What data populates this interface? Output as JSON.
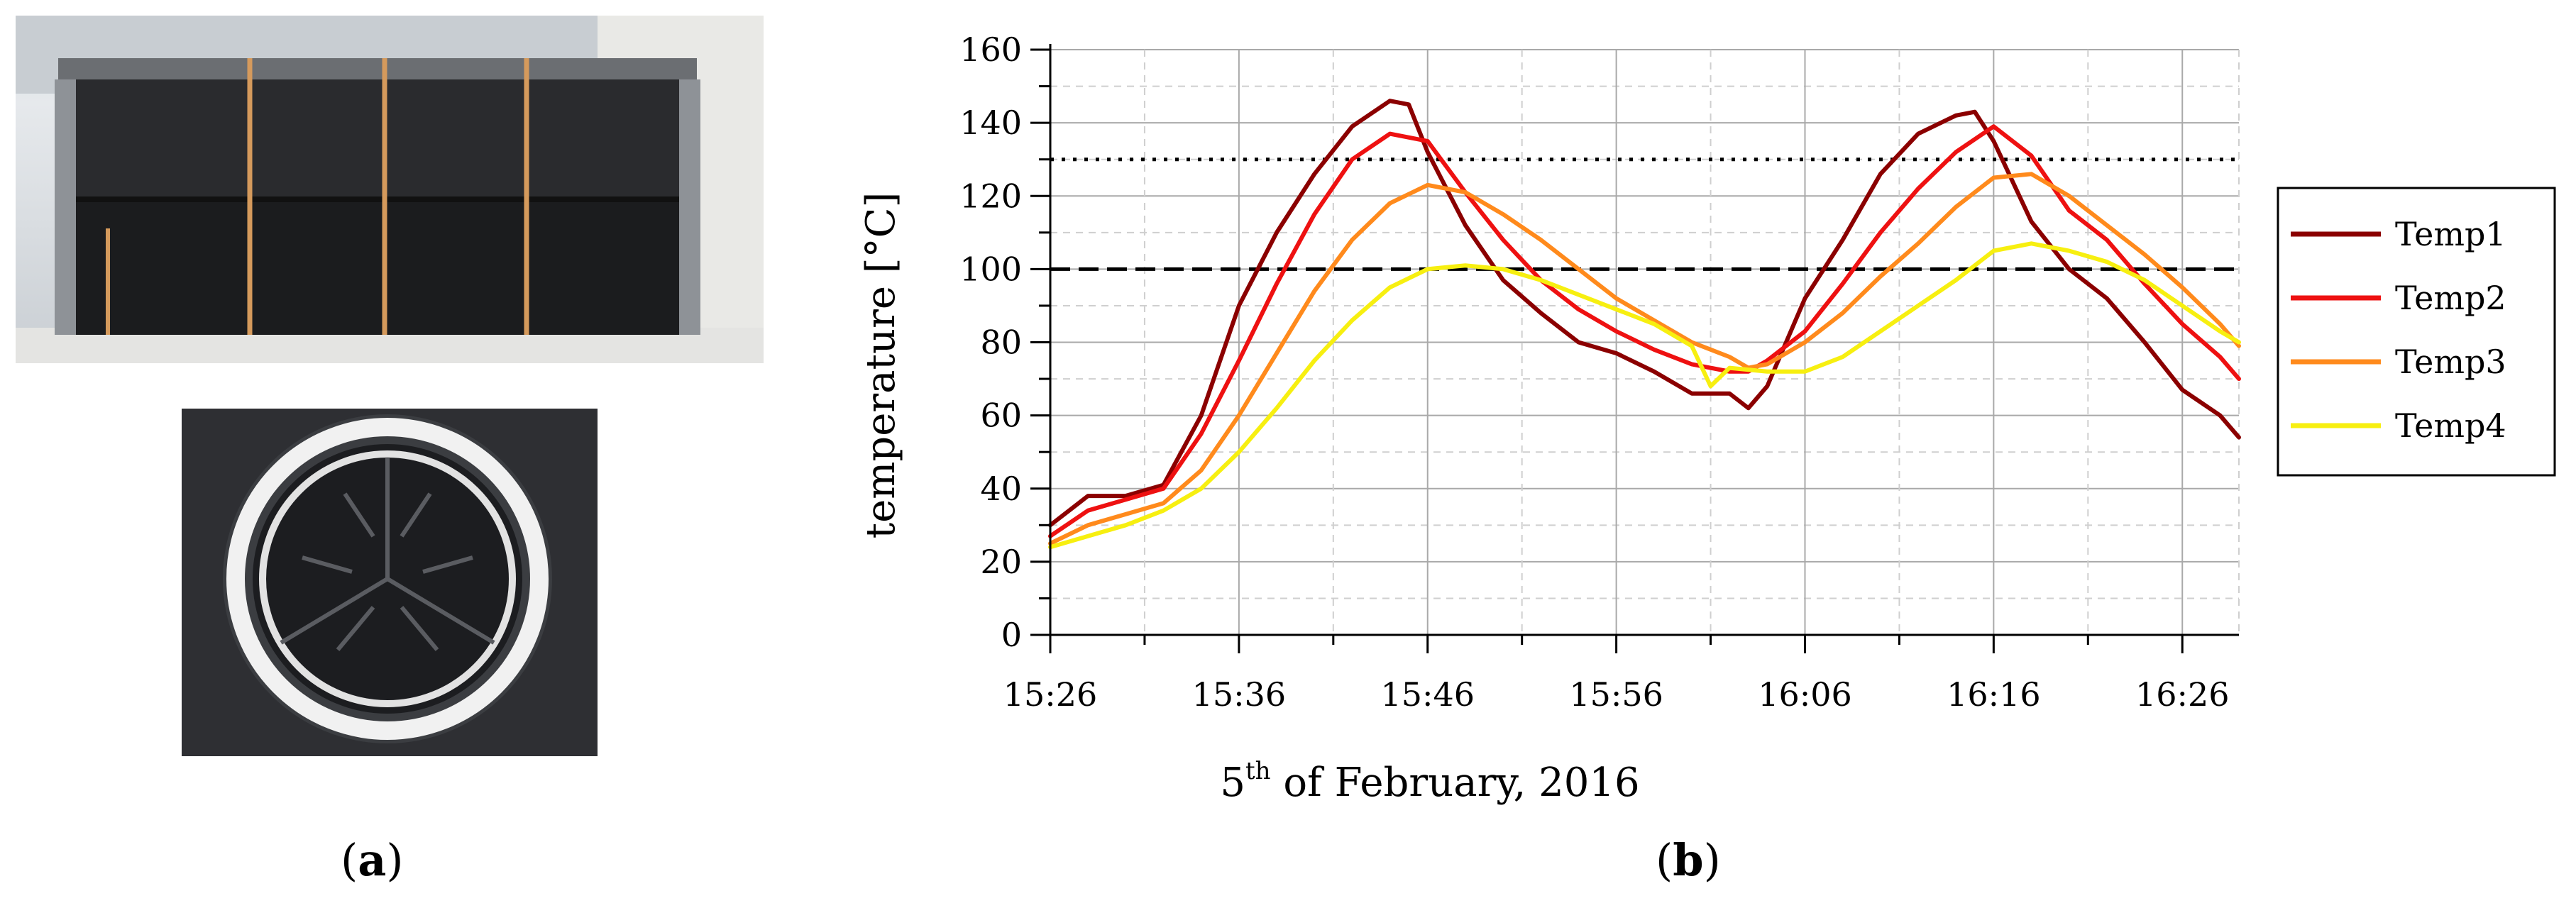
{
  "panels": {
    "a_open": "(",
    "a_letter": "a",
    "a_close": ")",
    "b_open": "(",
    "b_letter": "b",
    "b_close": ")"
  },
  "chart_data": {
    "type": "line",
    "title": "",
    "xlabel_prefix": "5",
    "xlabel_sup": "th",
    "xlabel_rest": " of February, 2016",
    "ylabel": "temperature [°C]",
    "ylim": [
      0,
      160
    ],
    "yticks": [
      0,
      20,
      40,
      60,
      80,
      100,
      120,
      140,
      160
    ],
    "xlim_minutes_after_1526": [
      0,
      63
    ],
    "xtick_labels": [
      "15:26",
      "15:36",
      "15:46",
      "15:56",
      "16:06",
      "16:16",
      "16:26"
    ],
    "grid": true,
    "legend_position": "right",
    "reference_lines": [
      {
        "y": 130,
        "style": "dotted",
        "color": "#000000"
      },
      {
        "y": 100,
        "style": "dashed",
        "color": "#000000"
      }
    ],
    "series": [
      {
        "name": "Temp1",
        "color": "#8b0000",
        "time": [
          "15:26",
          "15:28",
          "15:30",
          "15:32",
          "15:34",
          "15:36",
          "15:38",
          "15:40",
          "15:42",
          "15:44",
          "15:45",
          "15:46",
          "15:48",
          "15:50",
          "15:52",
          "15:54",
          "15:56",
          "15:58",
          "16:00",
          "16:02",
          "16:03",
          "16:04",
          "16:06",
          "16:08",
          "16:10",
          "16:12",
          "16:14",
          "16:15",
          "16:16",
          "16:18",
          "16:20",
          "16:22",
          "16:24",
          "16:26",
          "16:28",
          "16:29"
        ],
        "values": [
          30,
          38,
          38,
          41,
          60,
          90,
          110,
          126,
          139,
          146,
          145,
          132,
          112,
          97,
          88,
          80,
          77,
          72,
          66,
          66,
          62,
          68,
          92,
          108,
          126,
          137,
          142,
          143,
          135,
          113,
          100,
          92,
          80,
          67,
          60,
          54
        ]
      },
      {
        "name": "Temp2",
        "color": "#ee1111",
        "time": [
          "15:26",
          "15:28",
          "15:30",
          "15:32",
          "15:34",
          "15:36",
          "15:38",
          "15:40",
          "15:42",
          "15:44",
          "15:46",
          "15:48",
          "15:50",
          "15:52",
          "15:54",
          "15:56",
          "15:58",
          "16:00",
          "16:02",
          "16:03",
          "16:04",
          "16:06",
          "16:08",
          "16:10",
          "16:12",
          "16:14",
          "16:16",
          "16:18",
          "16:20",
          "16:22",
          "16:24",
          "16:26",
          "16:28",
          "16:29"
        ],
        "values": [
          27,
          34,
          37,
          40,
          55,
          75,
          96,
          115,
          130,
          137,
          135,
          121,
          108,
          97,
          89,
          83,
          78,
          74,
          72,
          72,
          75,
          83,
          96,
          110,
          122,
          132,
          139,
          131,
          116,
          108,
          96,
          85,
          76,
          70
        ]
      },
      {
        "name": "Temp3",
        "color": "#ff8a1c",
        "time": [
          "15:26",
          "15:28",
          "15:30",
          "15:32",
          "15:34",
          "15:36",
          "15:38",
          "15:40",
          "15:42",
          "15:44",
          "15:46",
          "15:48",
          "15:50",
          "15:52",
          "15:54",
          "15:56",
          "15:58",
          "16:00",
          "16:02",
          "16:03",
          "16:04",
          "16:06",
          "16:08",
          "16:10",
          "16:12",
          "16:14",
          "16:16",
          "16:18",
          "16:20",
          "16:22",
          "16:24",
          "16:26",
          "16:28",
          "16:29"
        ],
        "values": [
          25,
          30,
          33,
          36,
          45,
          60,
          77,
          94,
          108,
          118,
          123,
          121,
          115,
          108,
          100,
          92,
          86,
          80,
          76,
          73,
          74,
          80,
          88,
          98,
          107,
          117,
          125,
          126,
          120,
          112,
          104,
          95,
          85,
          79
        ]
      },
      {
        "name": "Temp4",
        "color": "#f7ef10",
        "time": [
          "15:26",
          "15:28",
          "15:30",
          "15:32",
          "15:34",
          "15:36",
          "15:38",
          "15:40",
          "15:42",
          "15:44",
          "15:46",
          "15:48",
          "15:50",
          "15:52",
          "15:54",
          "15:56",
          "15:58",
          "16:00",
          "16:01",
          "16:02",
          "16:04",
          "16:06",
          "16:08",
          "16:10",
          "16:12",
          "16:14",
          "16:16",
          "16:18",
          "16:20",
          "16:22",
          "16:24",
          "16:26",
          "16:28",
          "16:29"
        ],
        "values": [
          24,
          27,
          30,
          34,
          40,
          50,
          62,
          75,
          86,
          95,
          100,
          101,
          100,
          97,
          93,
          89,
          85,
          79,
          68,
          73,
          72,
          72,
          76,
          83,
          90,
          97,
          105,
          107,
          105,
          102,
          97,
          90,
          83,
          80
        ]
      }
    ]
  }
}
